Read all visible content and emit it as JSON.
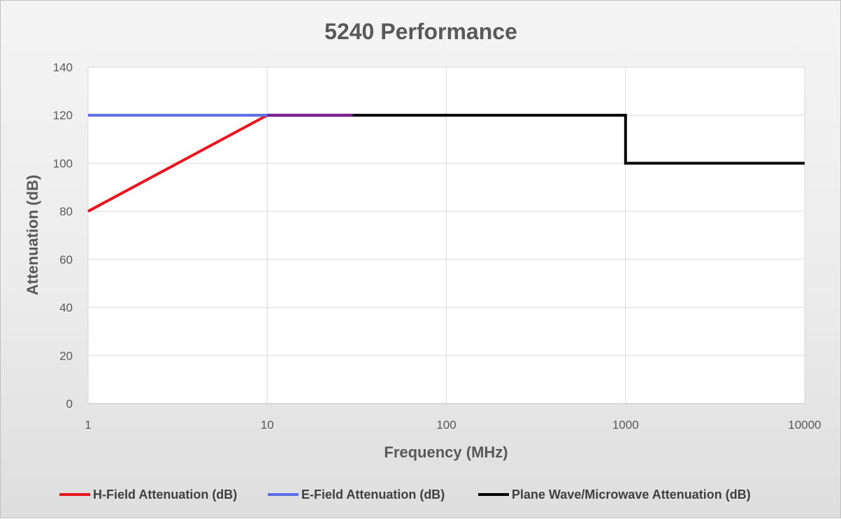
{
  "chart_data": {
    "type": "line",
    "title": "5240 Performance",
    "xlabel": "Frequency (MHz)",
    "ylabel": "Attenuation (dB)",
    "x_scale": "log",
    "xlim": [
      1,
      10000
    ],
    "ylim": [
      0,
      140
    ],
    "x_ticks": [
      "1",
      "10",
      "100",
      "1000",
      "10000"
    ],
    "y_ticks": [
      "0",
      "20",
      "40",
      "60",
      "80",
      "100",
      "120",
      "140"
    ],
    "grid": true,
    "legend_position": "bottom",
    "series": [
      {
        "name": "H-Field Attenuation (dB)",
        "color": "#e8141e",
        "points": [
          [
            1,
            80
          ],
          [
            10,
            120
          ],
          [
            30,
            120
          ]
        ]
      },
      {
        "name": "E-Field Attenuation (dB)",
        "color": "#5b6ce6",
        "points": [
          [
            1,
            120
          ],
          [
            30,
            120
          ]
        ]
      },
      {
        "name": "Plane Wave/Microwave Attenuation (dB)",
        "color": "#000000",
        "points": [
          [
            30,
            120
          ],
          [
            1000,
            120
          ],
          [
            1000,
            100
          ],
          [
            10000,
            100
          ]
        ]
      }
    ]
  }
}
